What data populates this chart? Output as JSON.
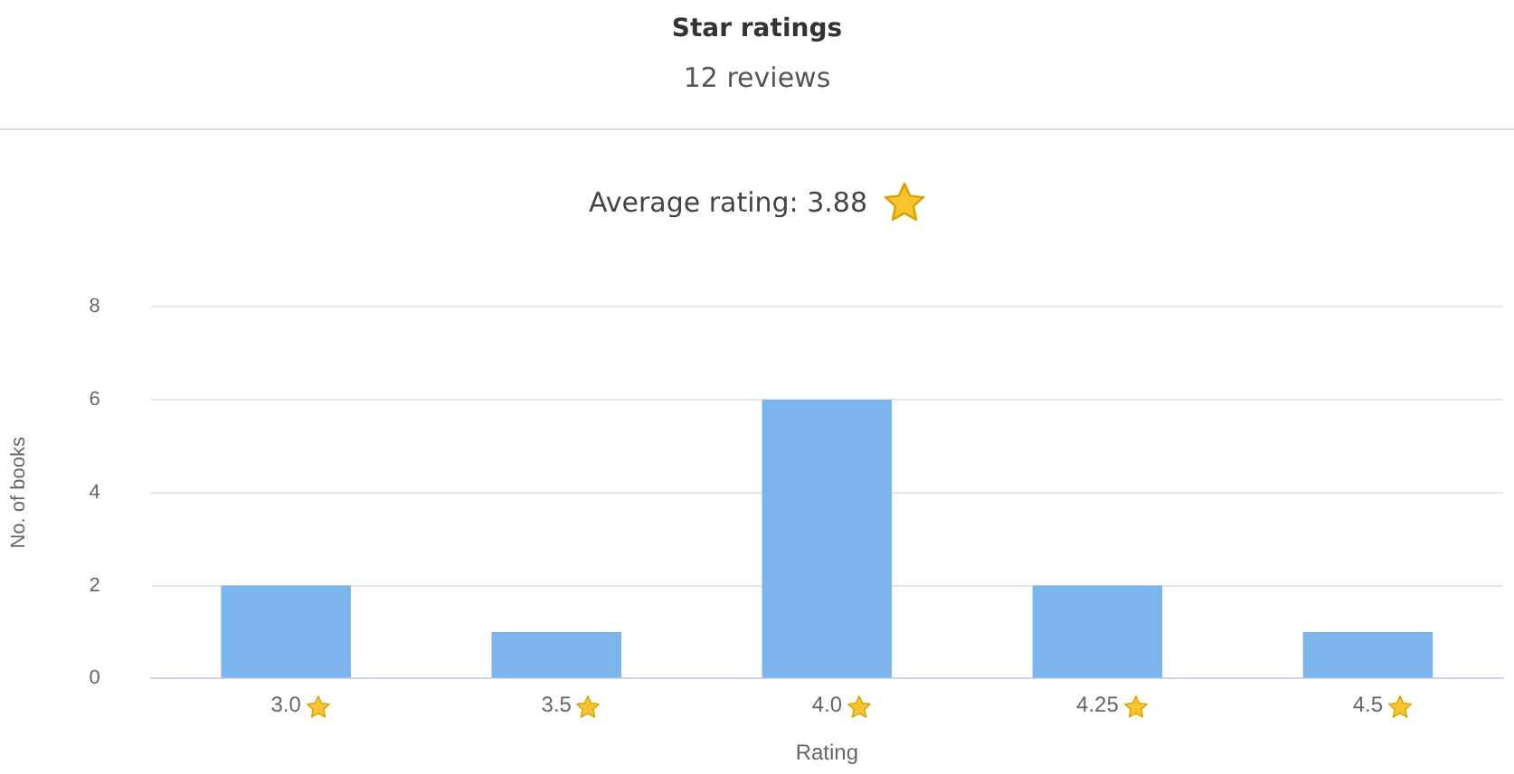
{
  "chart_data": {
    "type": "bar",
    "title": "Star ratings",
    "subtitle": "12 reviews",
    "annotations": [
      "Average rating: 3.88"
    ],
    "categories": [
      "3.0",
      "3.5",
      "4.0",
      "4.25",
      "4.5"
    ],
    "values": [
      2,
      1,
      6,
      2,
      1
    ],
    "color": "#7cb5ec",
    "xlabel": "Rating",
    "ylabel": "No. of books",
    "ylim": [
      0,
      8
    ],
    "yticks": [
      0,
      2,
      4,
      6,
      8
    ],
    "grid": "y",
    "legend": false
  }
}
